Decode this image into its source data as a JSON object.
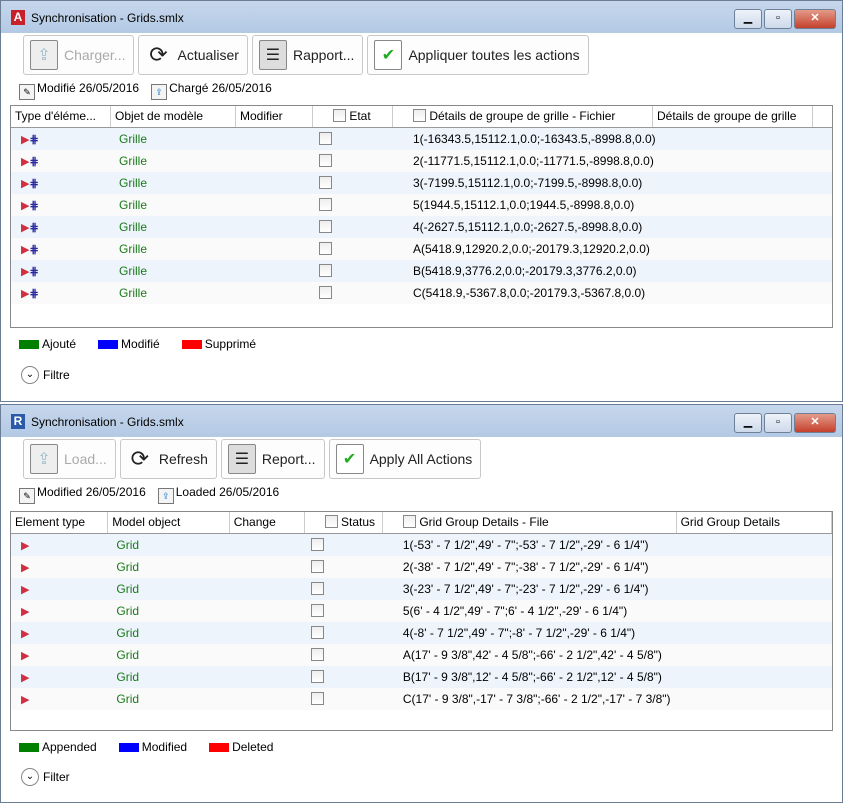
{
  "windows": [
    {
      "title": "Synchronisation - Grids.smlx",
      "logo_letter": "A",
      "logo_color": "#c8202a",
      "toolbar": {
        "load": "Charger...",
        "refresh": "Actualiser",
        "report": "Rapport...",
        "apply": "Appliquer toutes les actions"
      },
      "status": {
        "modified": "Modifié 26/05/2016",
        "loaded": "Chargé 26/05/2016"
      },
      "columns": [
        "Type d'éléme...",
        "Objet de modèle",
        "Modifier",
        "Etat",
        "Détails de groupe de grille - Fichier",
        "Détails de groupe de grille"
      ],
      "rows": [
        {
          "object": "Grille",
          "file": "1(-16343.5,15112.1,0.0;-16343.5,-8998.8,0.0)"
        },
        {
          "object": "Grille",
          "file": "2(-11771.5,15112.1,0.0;-11771.5,-8998.8,0.0)"
        },
        {
          "object": "Grille",
          "file": "3(-7199.5,15112.1,0.0;-7199.5,-8998.8,0.0)"
        },
        {
          "object": "Grille",
          "file": "5(1944.5,15112.1,0.0;1944.5,-8998.8,0.0)"
        },
        {
          "object": "Grille",
          "file": "4(-2627.5,15112.1,0.0;-2627.5,-8998.8,0.0)"
        },
        {
          "object": "Grille",
          "file": "A(5418.9,12920.2,0.0;-20179.3,12920.2,0.0)"
        },
        {
          "object": "Grille",
          "file": "B(5418.9,3776.2,0.0;-20179.3,3776.2,0.0)"
        },
        {
          "object": "Grille",
          "file": "C(5418.9,-5367.8,0.0;-20179.3,-5367.8,0.0)"
        }
      ],
      "legend": [
        {
          "label": "Ajouté",
          "color": "#008000"
        },
        {
          "label": "Modifié",
          "color": "#0000ff"
        },
        {
          "label": "Supprimé",
          "color": "#ff0000"
        }
      ],
      "filter": "Filtre"
    },
    {
      "title": "Synchronisation - Grids.smlx",
      "logo_letter": "R",
      "logo_color": "#2a5aa8",
      "toolbar": {
        "load": "Load...",
        "refresh": "Refresh",
        "report": "Report...",
        "apply": "Apply All Actions"
      },
      "status": {
        "modified": "Modified 26/05/2016",
        "loaded": "Loaded 26/05/2016"
      },
      "columns": [
        "Element type",
        "Model object",
        "Change",
        "Status",
        "Grid Group Details - File",
        "Grid Group Details"
      ],
      "rows": [
        {
          "object": "Grid",
          "file": "1(-53' - 7 1/2\",49' - 7\";-53' - 7 1/2\",-29' - 6 1/4\")"
        },
        {
          "object": "Grid",
          "file": "2(-38' - 7 1/2\",49' - 7\";-38' - 7 1/2\",-29' - 6 1/4\")"
        },
        {
          "object": "Grid",
          "file": "3(-23' - 7 1/2\",49' - 7\";-23' - 7 1/2\",-29' - 6 1/4\")"
        },
        {
          "object": "Grid",
          "file": "5(6' - 4 1/2\",49' - 7\";6' - 4 1/2\",-29' - 6 1/4\")"
        },
        {
          "object": "Grid",
          "file": "4(-8' - 7 1/2\",49' - 7\";-8' - 7 1/2\",-29' - 6 1/4\")"
        },
        {
          "object": "Grid",
          "file": "A(17' - 9 3/8\",42' - 4 5/8\";-66' - 2 1/2\",42' - 4 5/8\")"
        },
        {
          "object": "Grid",
          "file": "B(17' - 9 3/8\",12' - 4 5/8\";-66' - 2 1/2\",12' - 4 5/8\")"
        },
        {
          "object": "Grid",
          "file": "C(17' - 9 3/8\",-17' - 7 3/8\";-66' - 2 1/2\",-17' - 7 3/8\")"
        }
      ],
      "legend": [
        {
          "label": "Appended",
          "color": "#008000"
        },
        {
          "label": "Modified",
          "color": "#0000ff"
        },
        {
          "label": "Deleted",
          "color": "#ff0000"
        }
      ],
      "filter": "Filter"
    }
  ]
}
